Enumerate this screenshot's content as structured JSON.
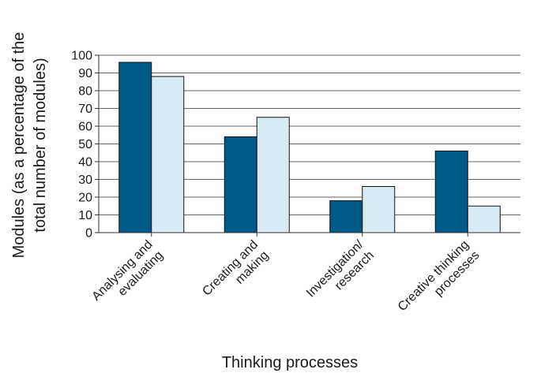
{
  "chart_data": {
    "type": "bar",
    "title": "",
    "xlabel": "Thinking processes",
    "ylabel_lines": [
      "Modules (as a percentage of the",
      "total number of modules)"
    ],
    "categories": [
      [
        "Analysing and",
        "evaluating"
      ],
      [
        "Creating and",
        "making"
      ],
      [
        "Investigation/",
        "research"
      ],
      [
        "Creative thinking",
        "processes"
      ]
    ],
    "series": [
      {
        "values": [
          96,
          54,
          18,
          46
        ],
        "color": "#005a87"
      },
      {
        "values": [
          88,
          65,
          26,
          15
        ],
        "color": "#d8eaf3"
      }
    ],
    "ylim": [
      0,
      100
    ],
    "yticks": [
      0,
      10,
      20,
      30,
      40,
      50,
      60,
      70,
      80,
      90,
      100
    ],
    "grid": true,
    "legend": "none"
  }
}
